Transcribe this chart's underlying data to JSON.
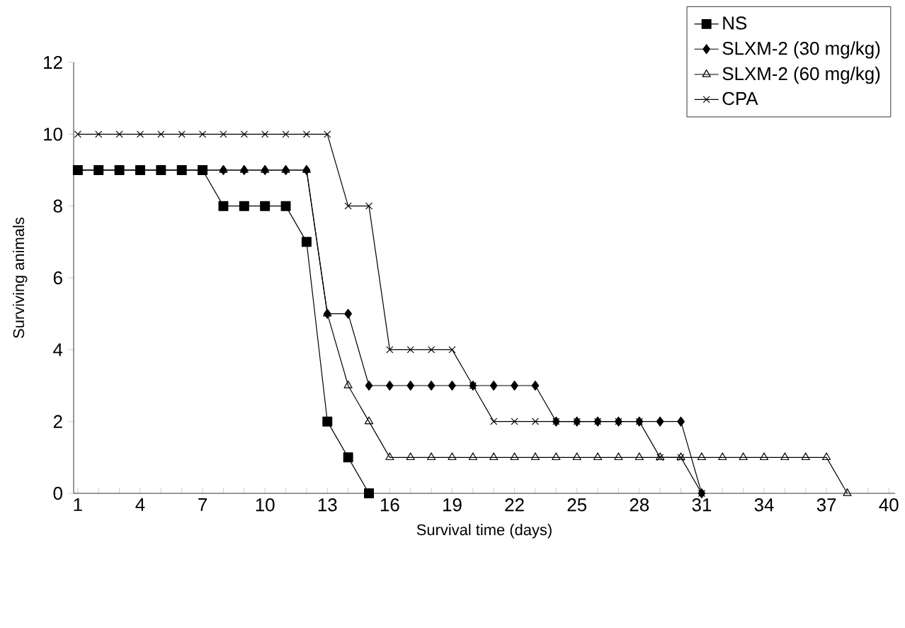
{
  "chart_data": {
    "type": "line",
    "xlabel": "Survival time (days)",
    "ylabel": "Surviving animals",
    "xlim": [
      0.8,
      40.3
    ],
    "ylim": [
      0,
      12
    ],
    "xticks": [
      1,
      {
        "value": 2,
        "label": null
      },
      {
        "value": 3,
        "label": null
      },
      4,
      {
        "value": 5,
        "label": null
      },
      {
        "value": 6,
        "label": null
      },
      7,
      {
        "value": 8,
        "label": null
      },
      {
        "value": 9,
        "label": null
      },
      10,
      {
        "value": 11,
        "label": null
      },
      {
        "value": 12,
        "label": null
      },
      13,
      {
        "value": 14,
        "label": null
      },
      {
        "value": 15,
        "label": null
      },
      16,
      {
        "value": 17,
        "label": null
      },
      {
        "value": 18,
        "label": null
      },
      19,
      {
        "value": 20,
        "label": null
      },
      {
        "value": 21,
        "label": null
      },
      22,
      {
        "value": 23,
        "label": null
      },
      {
        "value": 24,
        "label": null
      },
      25,
      {
        "value": 26,
        "label": null
      },
      {
        "value": 27,
        "label": null
      },
      28,
      {
        "value": 29,
        "label": null
      },
      {
        "value": 30,
        "label": null
      },
      31,
      {
        "value": 32,
        "label": null
      },
      {
        "value": 33,
        "label": null
      },
      34,
      {
        "value": 35,
        "label": null
      },
      {
        "value": 36,
        "label": null
      },
      37,
      {
        "value": 38,
        "label": null
      },
      {
        "value": 39,
        "label": null
      },
      40
    ],
    "yticks": [
      0,
      2,
      4,
      6,
      8,
      10,
      12
    ],
    "grid": false,
    "legend": "top right",
    "line_style": "solid",
    "series": [
      {
        "name": "NS",
        "color": "#000000",
        "marker": "square",
        "x": [
          1,
          2,
          3,
          4,
          5,
          6,
          7,
          8,
          9,
          10,
          11,
          12,
          13,
          14,
          15
        ],
        "values": [
          9,
          9,
          9,
          9,
          9,
          9,
          9,
          8,
          8,
          8,
          8,
          7,
          2,
          1,
          0
        ]
      },
      {
        "name": "SLXM-2 (30 mg/kg)",
        "color": "#000000",
        "marker": "diamond",
        "x": [
          1,
          2,
          3,
          4,
          5,
          6,
          7,
          8,
          9,
          10,
          11,
          12,
          13,
          14,
          15,
          16,
          17,
          18,
          19,
          20,
          21,
          22,
          23,
          24,
          25,
          26,
          27,
          28,
          29,
          30,
          31
        ],
        "values": [
          9,
          9,
          9,
          9,
          9,
          9,
          9,
          9,
          9,
          9,
          9,
          9,
          5,
          5,
          3,
          3,
          3,
          3,
          3,
          3,
          3,
          3,
          3,
          2,
          2,
          2,
          2,
          2,
          2,
          2,
          0
        ]
      },
      {
        "name": "SLXM-2 (60 mg/kg)",
        "color": "#000000",
        "marker": "triangle",
        "x": [
          1,
          2,
          3,
          4,
          5,
          6,
          7,
          8,
          9,
          10,
          11,
          12,
          13,
          14,
          15,
          16,
          17,
          18,
          19,
          20,
          21,
          22,
          23,
          24,
          25,
          26,
          27,
          28,
          29,
          30,
          31,
          32,
          33,
          34,
          35,
          36,
          37,
          38
        ],
        "values": [
          9,
          9,
          9,
          9,
          9,
          9,
          9,
          9,
          9,
          9,
          9,
          9,
          5,
          3,
          2,
          1,
          1,
          1,
          1,
          1,
          1,
          1,
          1,
          1,
          1,
          1,
          1,
          1,
          1,
          1,
          1,
          1,
          1,
          1,
          1,
          1,
          1,
          0
        ]
      },
      {
        "name": "CPA",
        "color": "#000000",
        "marker": "cross",
        "x": [
          1,
          2,
          3,
          4,
          5,
          6,
          7,
          8,
          9,
          10,
          11,
          12,
          13,
          14,
          15,
          16,
          17,
          18,
          19,
          20,
          21,
          22,
          23,
          24,
          25,
          26,
          27,
          28,
          29,
          30,
          31
        ],
        "values": [
          10,
          10,
          10,
          10,
          10,
          10,
          10,
          10,
          10,
          10,
          10,
          10,
          10,
          8,
          8,
          4,
          4,
          4,
          4,
          3,
          2,
          2,
          2,
          2,
          2,
          2,
          2,
          2,
          1,
          1,
          0
        ]
      }
    ]
  }
}
